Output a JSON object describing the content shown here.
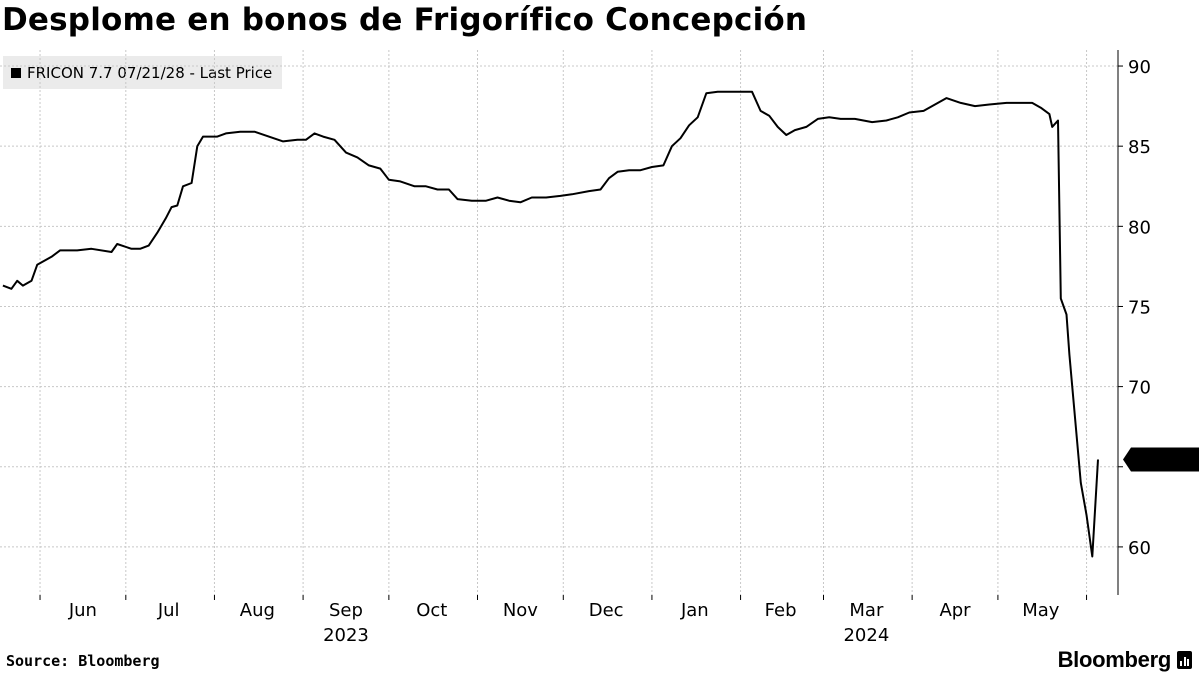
{
  "title": "Desplome en bonos de Frigorífico Concepción",
  "source": "Source: Bloomberg",
  "brand": "Bloomberg",
  "chart_data": {
    "type": "line",
    "series": [
      {
        "name": "FRICON 7.7 07/21/28 - Last Price",
        "color": "#000000",
        "last_value_label": "65.451",
        "points": [
          [
            "2023-05-19",
            76.3
          ],
          [
            "2023-05-22",
            76.1
          ],
          [
            "2023-05-24",
            76.6
          ],
          [
            "2023-05-26",
            76.3
          ],
          [
            "2023-05-29",
            76.6
          ],
          [
            "2023-05-31",
            77.6
          ],
          [
            "2023-06-05",
            78.1
          ],
          [
            "2023-06-08",
            78.5
          ],
          [
            "2023-06-14",
            78.5
          ],
          [
            "2023-06-19",
            78.6
          ],
          [
            "2023-06-26",
            78.4
          ],
          [
            "2023-06-28",
            78.9
          ],
          [
            "2023-07-03",
            78.6
          ],
          [
            "2023-07-06",
            78.6
          ],
          [
            "2023-07-09",
            78.8
          ],
          [
            "2023-07-12",
            79.6
          ],
          [
            "2023-07-15",
            80.5
          ],
          [
            "2023-07-17",
            81.2
          ],
          [
            "2023-07-19",
            81.3
          ],
          [
            "2023-07-21",
            82.5
          ],
          [
            "2023-07-24",
            82.7
          ],
          [
            "2023-07-26",
            85.0
          ],
          [
            "2023-07-28",
            85.6
          ],
          [
            "2023-08-02",
            85.6
          ],
          [
            "2023-08-05",
            85.8
          ],
          [
            "2023-08-10",
            85.9
          ],
          [
            "2023-08-15",
            85.9
          ],
          [
            "2023-08-20",
            85.6
          ],
          [
            "2023-08-25",
            85.3
          ],
          [
            "2023-08-30",
            85.4
          ],
          [
            "2023-09-02",
            85.4
          ],
          [
            "2023-09-05",
            85.8
          ],
          [
            "2023-09-08",
            85.6
          ],
          [
            "2023-09-12",
            85.4
          ],
          [
            "2023-09-16",
            84.6
          ],
          [
            "2023-09-20",
            84.3
          ],
          [
            "2023-09-24",
            83.8
          ],
          [
            "2023-09-28",
            83.6
          ],
          [
            "2023-10-01",
            82.9
          ],
          [
            "2023-10-05",
            82.8
          ],
          [
            "2023-10-10",
            82.5
          ],
          [
            "2023-10-14",
            82.5
          ],
          [
            "2023-10-18",
            82.3
          ],
          [
            "2023-10-22",
            82.3
          ],
          [
            "2023-10-25",
            81.7
          ],
          [
            "2023-10-30",
            81.6
          ],
          [
            "2023-11-04",
            81.6
          ],
          [
            "2023-11-08",
            81.8
          ],
          [
            "2023-11-12",
            81.6
          ],
          [
            "2023-11-16",
            81.5
          ],
          [
            "2023-11-20",
            81.8
          ],
          [
            "2023-11-25",
            81.8
          ],
          [
            "2023-11-30",
            81.9
          ],
          [
            "2023-12-04",
            82.0
          ],
          [
            "2023-12-10",
            82.2
          ],
          [
            "2023-12-14",
            82.3
          ],
          [
            "2023-12-17",
            83.0
          ],
          [
            "2023-12-20",
            83.4
          ],
          [
            "2023-12-24",
            83.5
          ],
          [
            "2023-12-28",
            83.5
          ],
          [
            "2024-01-01",
            83.7
          ],
          [
            "2024-01-05",
            83.8
          ],
          [
            "2024-01-08",
            85.0
          ],
          [
            "2024-01-11",
            85.5
          ],
          [
            "2024-01-14",
            86.3
          ],
          [
            "2024-01-17",
            86.8
          ],
          [
            "2024-01-20",
            88.3
          ],
          [
            "2024-01-24",
            88.4
          ],
          [
            "2024-01-28",
            88.4
          ],
          [
            "2024-02-02",
            88.4
          ],
          [
            "2024-02-05",
            88.4
          ],
          [
            "2024-02-08",
            87.2
          ],
          [
            "2024-02-11",
            86.9
          ],
          [
            "2024-02-14",
            86.2
          ],
          [
            "2024-02-17",
            85.7
          ],
          [
            "2024-02-20",
            86.0
          ],
          [
            "2024-02-24",
            86.2
          ],
          [
            "2024-02-28",
            86.7
          ],
          [
            "2024-03-03",
            86.8
          ],
          [
            "2024-03-07",
            86.7
          ],
          [
            "2024-03-12",
            86.7
          ],
          [
            "2024-03-18",
            86.5
          ],
          [
            "2024-03-23",
            86.6
          ],
          [
            "2024-03-27",
            86.8
          ],
          [
            "2024-03-31",
            87.1
          ],
          [
            "2024-04-05",
            87.2
          ],
          [
            "2024-04-09",
            87.6
          ],
          [
            "2024-04-13",
            88.0
          ],
          [
            "2024-04-18",
            87.7
          ],
          [
            "2024-04-23",
            87.5
          ],
          [
            "2024-04-28",
            87.6
          ],
          [
            "2024-05-04",
            87.7
          ],
          [
            "2024-05-09",
            87.7
          ],
          [
            "2024-05-13",
            87.7
          ],
          [
            "2024-05-16",
            87.4
          ],
          [
            "2024-05-19",
            87.0
          ],
          [
            "2024-05-20",
            86.2
          ],
          [
            "2024-05-22",
            86.6
          ],
          [
            "2024-05-23",
            75.5
          ],
          [
            "2024-05-25",
            74.5
          ],
          [
            "2024-05-26",
            72.0
          ],
          [
            "2024-05-28",
            68.0
          ],
          [
            "2024-05-30",
            64.0
          ],
          [
            "2024-06-01",
            62.0
          ],
          [
            "2024-06-03",
            59.4
          ],
          [
            "2024-06-05",
            65.451
          ]
        ]
      }
    ],
    "x_range": [
      "2023-05-18",
      "2024-06-12"
    ],
    "x_ticks": [
      {
        "label": "Jun",
        "date": "2023-06-16"
      },
      {
        "label": "Jul",
        "date": "2023-07-16"
      },
      {
        "label": "Aug",
        "date": "2023-08-16"
      },
      {
        "label": "Sep",
        "date": "2023-09-16"
      },
      {
        "label": "Oct",
        "date": "2023-10-16"
      },
      {
        "label": "Nov",
        "date": "2023-11-16"
      },
      {
        "label": "Dec",
        "date": "2023-12-16"
      },
      {
        "label": "Jan",
        "date": "2024-01-16"
      },
      {
        "label": "Feb",
        "date": "2024-02-15"
      },
      {
        "label": "Mar",
        "date": "2024-03-16"
      },
      {
        "label": "Apr",
        "date": "2024-04-16"
      },
      {
        "label": "May",
        "date": "2024-05-16"
      }
    ],
    "x_year_labels": [
      {
        "label": "2023",
        "date": "2023-09-16"
      },
      {
        "label": "2024",
        "date": "2024-03-16"
      }
    ],
    "month_gridlines": [
      "2023-06-01",
      "2023-07-01",
      "2023-08-01",
      "2023-09-01",
      "2023-10-01",
      "2023-11-01",
      "2023-12-01",
      "2024-01-01",
      "2024-02-01",
      "2024-03-01",
      "2024-04-01",
      "2024-05-01",
      "2024-06-01"
    ],
    "ylim": [
      57,
      91
    ],
    "y_ticks": [
      60,
      65,
      70,
      75,
      80,
      85,
      90
    ],
    "y_tick_labels": [
      "60",
      "",
      "70",
      "75",
      "80",
      "85",
      "90"
    ],
    "y_axis_side": "right",
    "grid": true
  }
}
